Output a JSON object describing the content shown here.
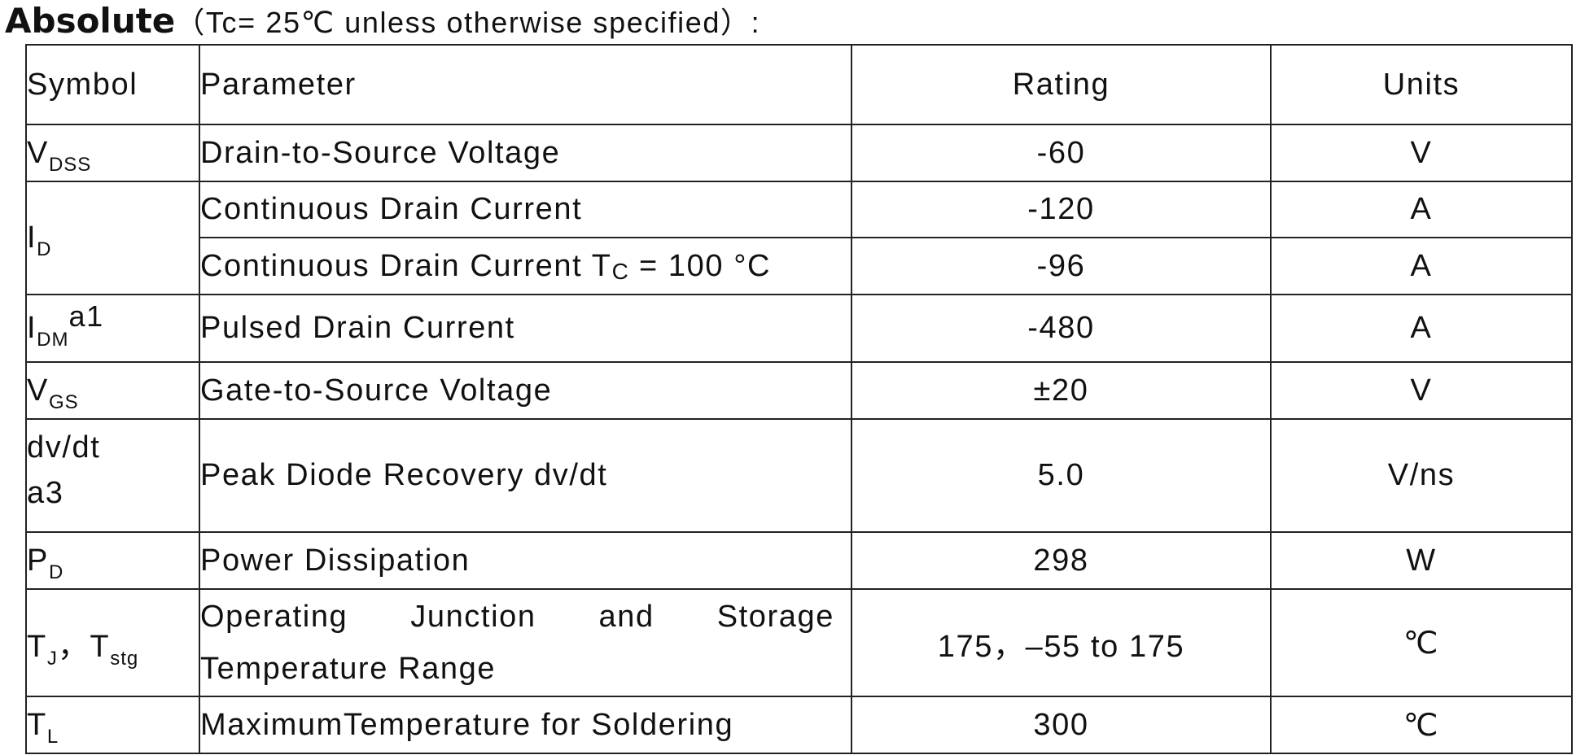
{
  "title": {
    "bold": "Absolute",
    "rest": "（Tc= 25℃  unless otherwise specified）:"
  },
  "table": {
    "headers": {
      "symbol": "Symbol",
      "parameter": "Parameter",
      "rating": "Rating",
      "units": "Units"
    },
    "rows": [
      {
        "sym_main": "V",
        "sym_sub": "DSS",
        "parameter": "Drain-to-Source Voltage",
        "rating": "-60",
        "units": "V"
      },
      {
        "sym_main": "I",
        "sym_sub": "D",
        "parameter": "Continuous Drain Current",
        "rating": "-120",
        "units": "A"
      },
      {
        "param_pre": "Continuous Drain Current T",
        "param_sub": "C",
        "param_post": " = 100 °C",
        "rating": "-96",
        "units": "A"
      },
      {
        "sym_main": "I",
        "sym_sub": "DM",
        "sym_sup": "a1",
        "parameter": "Pulsed Drain Current",
        "rating": "-480",
        "units": "A"
      },
      {
        "sym_main": "V",
        "sym_sub": "GS",
        "parameter": "Gate-to-Source Voltage",
        "rating": "±20",
        "units": "V"
      },
      {
        "sym_line1": "dv/dt",
        "sym_line2": "a3",
        "parameter": "Peak Diode Recovery dv/dt",
        "rating": "5.0",
        "units": "V/ns"
      },
      {
        "sym_main": "P",
        "sym_sub": "D",
        "parameter": "Power Dissipation",
        "rating": "298",
        "units": "W"
      },
      {
        "sym_main": "T",
        "sym_sub": "J",
        "sym_sep": "，",
        "sym_main2": "T",
        "sym_sub2": "stg",
        "param_line1": "Operating Junction and Storage",
        "param_line2": "Temperature Range",
        "rating": "175，–55 to 175",
        "units": "℃"
      },
      {
        "sym_main": "T",
        "sym_sub": "L",
        "parameter": "MaximumTemperature for Soldering",
        "rating": "300",
        "units": "℃"
      }
    ]
  }
}
